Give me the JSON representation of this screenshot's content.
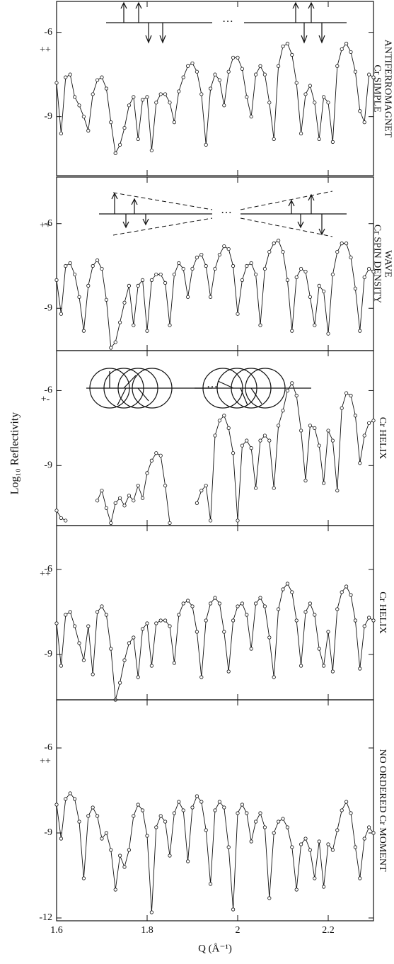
{
  "figure": {
    "ylabel": "Log₁₀ Reflectivity",
    "xlabel": "Q (Å⁻¹)"
  },
  "chart_data": [
    {
      "type": "line",
      "title_lines": [
        "Cr SIMPLE",
        "ANTIFERROMAGNET"
      ],
      "annotation": "++",
      "color": "#111111",
      "xlim": [
        1.6,
        2.3
      ],
      "xticks": [
        1.6,
        1.8,
        2.0,
        2.2
      ],
      "ylim": [
        -11.1,
        -4.9
      ],
      "yticks": [
        -6,
        -9
      ],
      "x": [
        1.6,
        1.61,
        1.62,
        1.63,
        1.64,
        1.65,
        1.66,
        1.67,
        1.68,
        1.69,
        1.7,
        1.71,
        1.72,
        1.73,
        1.74,
        1.75,
        1.76,
        1.77,
        1.78,
        1.79,
        1.8,
        1.81,
        1.82,
        1.83,
        1.84,
        1.85,
        1.86,
        1.87,
        1.88,
        1.89,
        1.9,
        1.91,
        1.92,
        1.93,
        1.94,
        1.95,
        1.96,
        1.97,
        1.98,
        1.99,
        2.0,
        2.01,
        2.02,
        2.03,
        2.04,
        2.05,
        2.06,
        2.07,
        2.08,
        2.09,
        2.1,
        2.11,
        2.12,
        2.13,
        2.14,
        2.15,
        2.16,
        2.17,
        2.18,
        2.19,
        2.2,
        2.21,
        2.22,
        2.23,
        2.24,
        2.25,
        2.26,
        2.27,
        2.28,
        2.29,
        2.3
      ],
      "values": [
        -7.8,
        -9.6,
        -7.6,
        -7.5,
        -8.3,
        -8.6,
        -9.0,
        -9.5,
        -8.2,
        -7.7,
        -7.6,
        -8.0,
        -9.2,
        -10.3,
        -10.0,
        -9.4,
        -8.6,
        -8.3,
        -9.8,
        -8.4,
        -8.3,
        -10.2,
        -8.5,
        -8.2,
        -8.2,
        -8.5,
        -9.2,
        -8.1,
        -7.6,
        -7.2,
        -7.1,
        -7.4,
        -8.2,
        -10.0,
        -8.0,
        -7.5,
        -7.7,
        -8.6,
        -7.4,
        -6.9,
        -6.9,
        -7.3,
        -8.3,
        -9.0,
        -7.5,
        -7.2,
        -7.5,
        -8.5,
        -9.8,
        -7.2,
        -6.5,
        -6.4,
        -6.8,
        -7.8,
        -9.6,
        -8.2,
        -7.9,
        -8.5,
        -9.8,
        -8.3,
        -8.5,
        -9.9,
        -7.2,
        -6.6,
        -6.4,
        -6.7,
        -7.4,
        -8.8,
        -9.2,
        -7.5,
        -7.6
      ]
    },
    {
      "type": "line",
      "title_lines": [
        "Cr SPIN DENSITY",
        "WAVE"
      ],
      "annotation": "++",
      "color": "#111111",
      "xlim": [
        1.6,
        2.3
      ],
      "xticks": [
        1.6,
        1.8,
        2.0,
        2.2
      ],
      "ylim": [
        -10.5,
        -4.35
      ],
      "yticks": [
        -6,
        -9
      ],
      "x": [
        1.6,
        1.61,
        1.62,
        1.63,
        1.64,
        1.65,
        1.66,
        1.67,
        1.68,
        1.69,
        1.7,
        1.71,
        1.72,
        1.73,
        1.74,
        1.75,
        1.76,
        1.77,
        1.78,
        1.79,
        1.8,
        1.81,
        1.82,
        1.83,
        1.84,
        1.85,
        1.86,
        1.87,
        1.88,
        1.89,
        1.9,
        1.91,
        1.92,
        1.93,
        1.94,
        1.95,
        1.96,
        1.97,
        1.98,
        1.99,
        2.0,
        2.01,
        2.02,
        2.03,
        2.04,
        2.05,
        2.06,
        2.07,
        2.08,
        2.09,
        2.1,
        2.11,
        2.12,
        2.13,
        2.14,
        2.15,
        2.16,
        2.17,
        2.18,
        2.19,
        2.2,
        2.21,
        2.22,
        2.23,
        2.24,
        2.25,
        2.26,
        2.27,
        2.28,
        2.29,
        2.3
      ],
      "values": [
        -8.0,
        -9.2,
        -7.5,
        -7.4,
        -7.8,
        -8.6,
        -9.8,
        -8.2,
        -7.5,
        -7.3,
        -7.6,
        -8.7,
        -10.4,
        -10.2,
        -9.5,
        -8.8,
        -8.2,
        -9.6,
        -8.2,
        -8.0,
        -9.8,
        -8.0,
        -7.8,
        -7.8,
        -8.1,
        -9.6,
        -7.8,
        -7.4,
        -7.6,
        -8.6,
        -7.6,
        -7.2,
        -7.1,
        -7.5,
        -8.6,
        -7.6,
        -7.1,
        -6.8,
        -6.9,
        -7.5,
        -9.2,
        -8.0,
        -7.5,
        -7.4,
        -7.8,
        -9.6,
        -7.6,
        -7.0,
        -6.7,
        -6.6,
        -7.0,
        -8.0,
        -9.8,
        -7.9,
        -7.6,
        -7.7,
        -8.6,
        -9.6,
        -8.2,
        -8.4,
        -9.9,
        -7.8,
        -7.0,
        -6.7,
        -6.7,
        -7.2,
        -8.3,
        -9.8,
        -7.9,
        -7.6,
        -7.7
      ]
    },
    {
      "type": "line",
      "title_lines": [
        "Cr HELIX"
      ],
      "annotation": "+-",
      "color": "#111111",
      "xlim": [
        1.6,
        2.3
      ],
      "xticks": [
        1.6,
        1.8,
        2.0,
        2.2
      ],
      "ylim": [
        -11.4,
        -4.4
      ],
      "yticks": [
        -6,
        -9
      ],
      "x": [
        1.6,
        1.61,
        1.62,
        1.63,
        1.64,
        1.65,
        1.66,
        1.67,
        1.68,
        1.69,
        1.7,
        1.71,
        1.72,
        1.73,
        1.74,
        1.75,
        1.76,
        1.77,
        1.78,
        1.79,
        1.8,
        1.81,
        1.82,
        1.83,
        1.84,
        1.85,
        1.86,
        1.87,
        1.88,
        1.89,
        1.9,
        1.91,
        1.92,
        1.93,
        1.94,
        1.95,
        1.96,
        1.97,
        1.98,
        1.99,
        2.0,
        2.01,
        2.02,
        2.03,
        2.04,
        2.05,
        2.06,
        2.07,
        2.08,
        2.09,
        2.1,
        2.11,
        2.12,
        2.13,
        2.14,
        2.15,
        2.16,
        2.17,
        2.18,
        2.19,
        2.2,
        2.21,
        2.22,
        2.23,
        2.24,
        2.25,
        2.26,
        2.27,
        2.28,
        2.29,
        2.3
      ],
      "values": [
        -10.8,
        -11.1,
        -11.2,
        null,
        null,
        null,
        null,
        null,
        null,
        -10.4,
        -10.0,
        -10.7,
        -11.3,
        -10.5,
        -10.3,
        -10.6,
        -10.2,
        -10.4,
        -9.8,
        -10.3,
        -9.3,
        -8.8,
        -8.5,
        -8.6,
        -9.8,
        -11.3,
        null,
        null,
        null,
        null,
        null,
        -10.5,
        -10.0,
        -9.8,
        -11.2,
        -7.8,
        -7.2,
        -7.0,
        -7.5,
        -8.5,
        -11.2,
        -8.2,
        -8.0,
        -8.3,
        -9.9,
        -8.0,
        -7.8,
        -8.0,
        -9.9,
        -7.4,
        -6.8,
        -6.0,
        -5.7,
        -6.2,
        -7.6,
        -9.6,
        -7.4,
        -7.5,
        -8.2,
        -9.7,
        -7.6,
        -8.0,
        -10.0,
        -6.7,
        -6.1,
        -6.2,
        -7.0,
        -8.9,
        -7.8,
        -7.3,
        -7.2
      ]
    },
    {
      "type": "line",
      "title_lines": [
        "Cr HELIX"
      ],
      "annotation": "++",
      "color": "#111111",
      "xlim": [
        1.6,
        2.3
      ],
      "xticks": [
        1.6,
        1.8,
        2.0,
        2.2
      ],
      "ylim": [
        -10.6,
        -4.45
      ],
      "yticks": [
        -6,
        -9
      ],
      "x": [
        1.6,
        1.61,
        1.62,
        1.63,
        1.64,
        1.65,
        1.66,
        1.67,
        1.68,
        1.69,
        1.7,
        1.71,
        1.72,
        1.73,
        1.74,
        1.75,
        1.76,
        1.77,
        1.78,
        1.79,
        1.8,
        1.81,
        1.82,
        1.83,
        1.84,
        1.85,
        1.86,
        1.87,
        1.88,
        1.89,
        1.9,
        1.91,
        1.92,
        1.93,
        1.94,
        1.95,
        1.96,
        1.97,
        1.98,
        1.99,
        2.0,
        2.01,
        2.02,
        2.03,
        2.04,
        2.05,
        2.06,
        2.07,
        2.08,
        2.09,
        2.1,
        2.11,
        2.12,
        2.13,
        2.14,
        2.15,
        2.16,
        2.17,
        2.18,
        2.19,
        2.2,
        2.21,
        2.22,
        2.23,
        2.24,
        2.25,
        2.26,
        2.27,
        2.28,
        2.29,
        2.3
      ],
      "values": [
        -7.9,
        -9.4,
        -7.6,
        -7.5,
        -8.0,
        -8.6,
        -9.2,
        -8.0,
        -9.7,
        -7.5,
        -7.3,
        -7.6,
        -8.8,
        -10.6,
        -10.0,
        -9.2,
        -8.6,
        -8.4,
        -9.8,
        -8.1,
        -7.9,
        -9.4,
        -7.9,
        -7.8,
        -7.8,
        -8.0,
        -9.3,
        -7.6,
        -7.2,
        -7.1,
        -7.3,
        -8.2,
        -9.8,
        -7.8,
        -7.2,
        -7.0,
        -7.2,
        -8.2,
        -9.6,
        -7.8,
        -7.3,
        -7.2,
        -7.6,
        -8.8,
        -7.2,
        -7.0,
        -7.3,
        -8.4,
        -9.8,
        -7.4,
        -6.7,
        -6.5,
        -6.8,
        -7.8,
        -9.4,
        -7.5,
        -7.2,
        -7.6,
        -8.8,
        -9.4,
        -8.2,
        -9.6,
        -7.4,
        -6.8,
        -6.6,
        -6.9,
        -7.8,
        -9.5,
        -8.0,
        -7.7,
        -7.8
      ]
    },
    {
      "type": "line",
      "title_lines": [
        "NO ORDERED Cr MOMENT"
      ],
      "annotation": "++",
      "color": "#111111",
      "xlim": [
        1.6,
        2.3
      ],
      "xticks": [
        1.6,
        1.8,
        2.0,
        2.2
      ],
      "xtick_labels": true,
      "ylim": [
        -12.1,
        -4.3
      ],
      "yticks": [
        -6,
        -9,
        -12
      ],
      "x": [
        1.6,
        1.61,
        1.62,
        1.63,
        1.64,
        1.65,
        1.66,
        1.67,
        1.68,
        1.69,
        1.7,
        1.71,
        1.72,
        1.73,
        1.74,
        1.75,
        1.76,
        1.77,
        1.78,
        1.79,
        1.8,
        1.81,
        1.82,
        1.83,
        1.84,
        1.85,
        1.86,
        1.87,
        1.88,
        1.89,
        1.9,
        1.91,
        1.92,
        1.93,
        1.94,
        1.95,
        1.96,
        1.97,
        1.98,
        1.99,
        2.0,
        2.01,
        2.02,
        2.03,
        2.04,
        2.05,
        2.06,
        2.07,
        2.08,
        2.09,
        2.1,
        2.11,
        2.12,
        2.13,
        2.14,
        2.15,
        2.16,
        2.17,
        2.18,
        2.19,
        2.2,
        2.21,
        2.22,
        2.23,
        2.24,
        2.25,
        2.26,
        2.27,
        2.28,
        2.29,
        2.3
      ],
      "values": [
        -8.0,
        -9.2,
        -7.8,
        -7.6,
        -7.8,
        -8.6,
        -10.6,
        -8.4,
        -8.1,
        -8.4,
        -9.2,
        -9.0,
        -9.6,
        -11.0,
        -9.8,
        -10.2,
        -9.6,
        -8.4,
        -8.0,
        -8.2,
        -9.1,
        -11.8,
        -8.8,
        -8.4,
        -8.6,
        -9.8,
        -8.3,
        -7.9,
        -8.2,
        -10.0,
        -8.1,
        -7.7,
        -7.9,
        -8.9,
        -10.8,
        -8.2,
        -7.9,
        -8.1,
        -9.5,
        -11.7,
        -8.3,
        -8.0,
        -8.3,
        -9.3,
        -8.6,
        -8.3,
        -8.8,
        -11.3,
        -9.0,
        -8.6,
        -8.5,
        -8.8,
        -9.5,
        -11.0,
        -9.4,
        -9.2,
        -9.6,
        -10.6,
        -9.3,
        -10.9,
        -9.4,
        -9.6,
        -8.9,
        -8.2,
        -7.9,
        -8.3,
        -9.5,
        -10.6,
        -9.2,
        -8.8,
        -9.0
      ]
    }
  ]
}
